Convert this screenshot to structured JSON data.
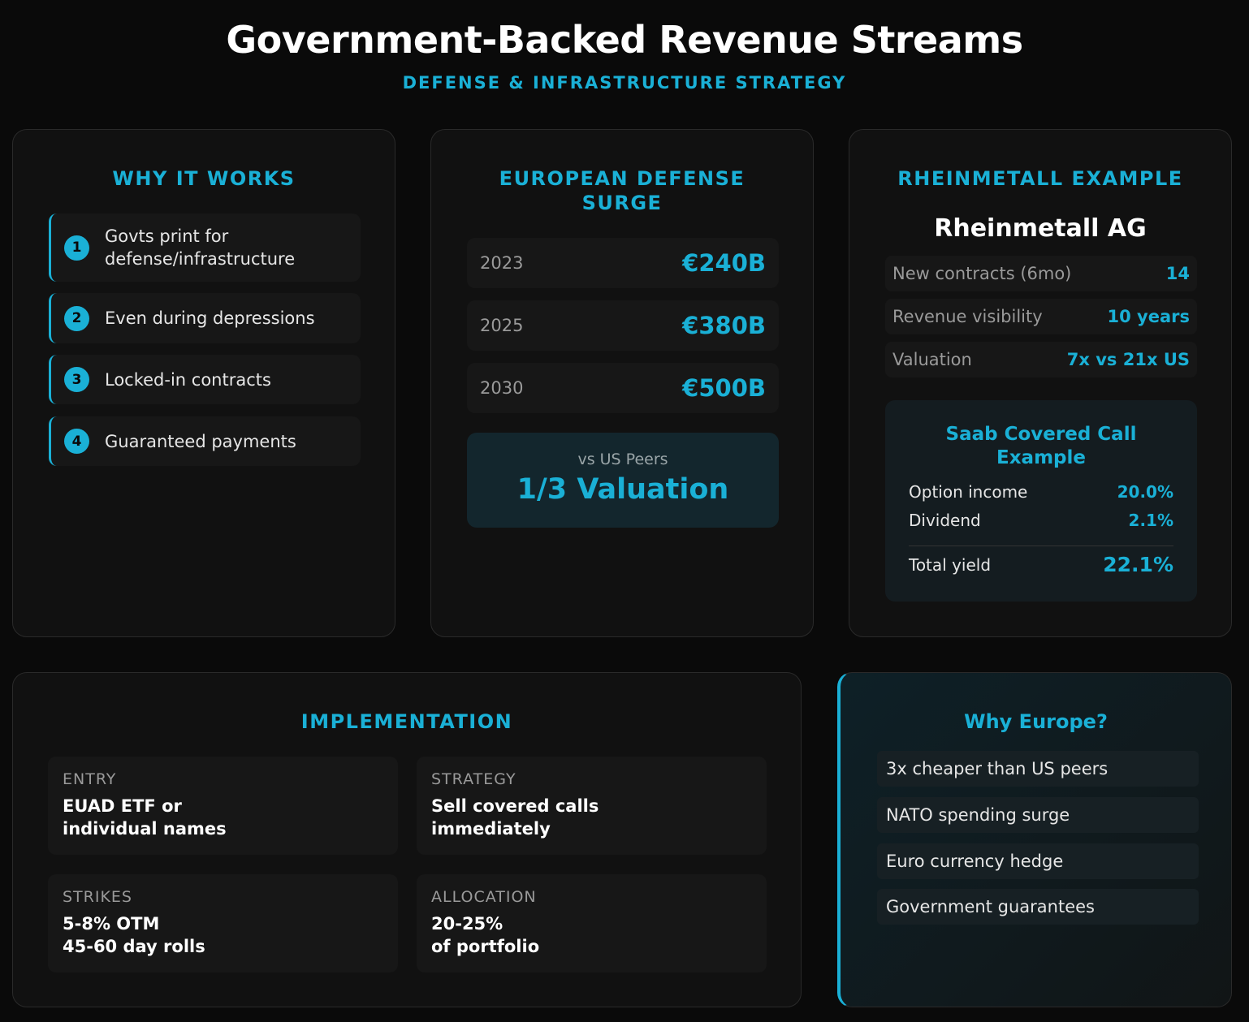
{
  "header": {
    "title": "Government-Backed Revenue Streams",
    "subtitle": "DEFENSE & INFRASTRUCTURE STRATEGY"
  },
  "why_it_works": {
    "title": "WHY IT WORKS",
    "steps": [
      {
        "num": "1",
        "text": "Govts print for defense/infrastructure"
      },
      {
        "num": "2",
        "text": "Even during depressions"
      },
      {
        "num": "3",
        "text": "Locked-in contracts"
      },
      {
        "num": "4",
        "text": "Guaranteed payments"
      }
    ]
  },
  "european_surge": {
    "title": "EUROPEAN DEFENSE SURGE",
    "years": [
      {
        "year": "2023",
        "value": "€240B"
      },
      {
        "year": "2025",
        "value": "€380B"
      },
      {
        "year": "2030",
        "value": "€500B"
      }
    ],
    "peers_label": "vs US Peers",
    "peers_value": "1/3 Valuation"
  },
  "rheinmetall": {
    "title": "RHEINMETALL EXAMPLE",
    "company": "Rheinmetall AG",
    "metrics": [
      {
        "label": "New contracts (6mo)",
        "value": "14"
      },
      {
        "label": "Revenue visibility",
        "value": "10 years"
      },
      {
        "label": "Valuation",
        "value": "7x vs 21x US"
      }
    ],
    "saab": {
      "title": "Saab Covered Call Example",
      "rows": [
        {
          "label": "Option income",
          "value": "20.0%"
        },
        {
          "label": "Dividend",
          "value": "2.1%"
        }
      ],
      "total_label": "Total yield",
      "total_value": "22.1%"
    }
  },
  "implementation": {
    "title": "IMPLEMENTATION",
    "items": [
      {
        "heading": "ENTRY",
        "line1": "EUAD ETF or",
        "line2": "individual names"
      },
      {
        "heading": "STRATEGY",
        "line1": "Sell covered calls",
        "line2": "immediately"
      },
      {
        "heading": "STRIKES",
        "line1": "5-8% OTM",
        "line2": "45-60 day rolls"
      },
      {
        "heading": "ALLOCATION",
        "line1": "20-25%",
        "line2": "of portfolio"
      }
    ]
  },
  "why_europe": {
    "title": "Why Europe?",
    "items": [
      "3x cheaper than US peers",
      "NATO spending surge",
      "Euro currency hedge",
      "Government guarantees"
    ]
  },
  "colors": {
    "accent": "#1ab0d6",
    "background": "#0a0a0a",
    "card": "#111111"
  }
}
